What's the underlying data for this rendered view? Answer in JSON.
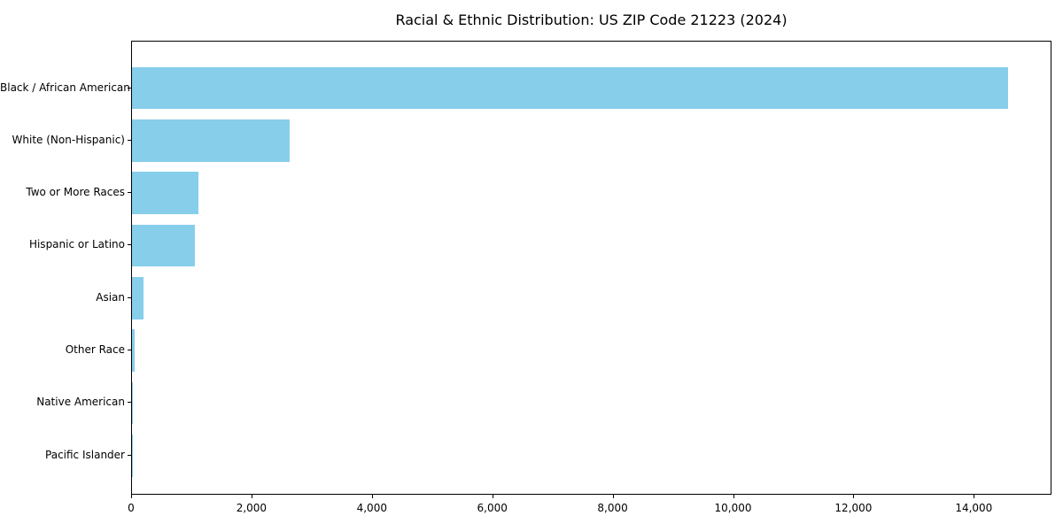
{
  "figure": {
    "background": "#ffffff",
    "text_color": "#000000",
    "spine_color": "#000000"
  },
  "chart_data": {
    "type": "bar",
    "orientation": "horizontal",
    "title": "Racial & Ethnic Distribution: US ZIP Code 21223 (2024)",
    "categories": [
      "Black / African American",
      "White (Non-Hispanic)",
      "Two or More Races",
      "Hispanic or Latino",
      "Asian",
      "Other Race",
      "Native American",
      "Pacific Islander"
    ],
    "values": [
      14560,
      2620,
      1110,
      1050,
      185,
      50,
      15,
      5
    ],
    "bar_color": "#87CEEB",
    "xlabel": "",
    "ylabel": "",
    "xlim": [
      0,
      15290
    ],
    "x_ticks": [
      0,
      2000,
      4000,
      6000,
      8000,
      10000,
      12000,
      14000
    ],
    "x_tick_labels": [
      "0",
      "2,000",
      "4,000",
      "6,000",
      "8,000",
      "10,000",
      "12,000",
      "14,000"
    ],
    "grid": false,
    "legend": false
  }
}
